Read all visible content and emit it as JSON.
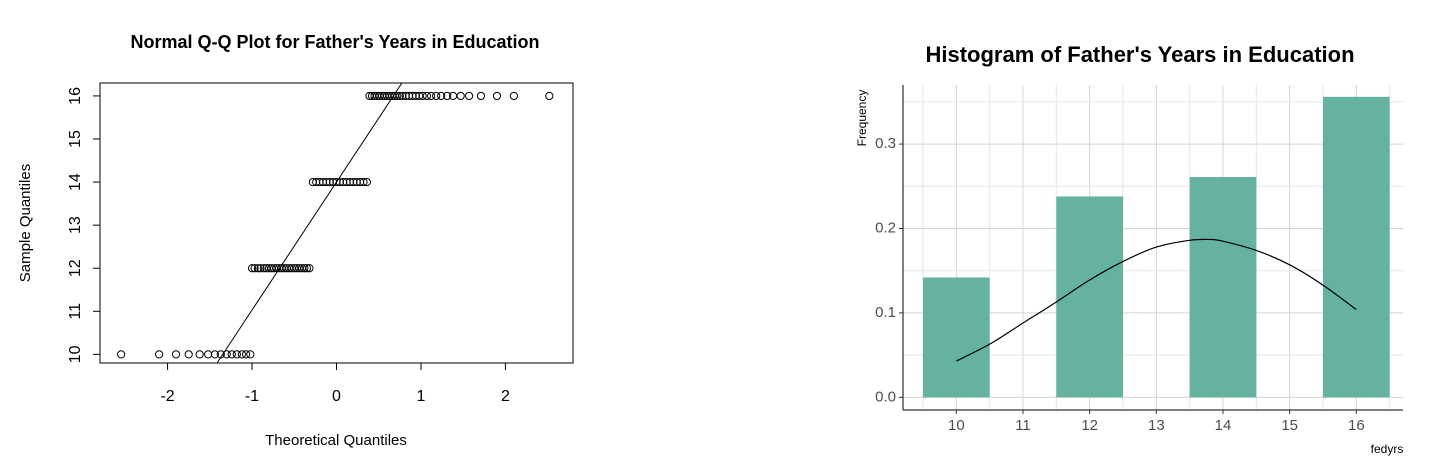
{
  "chart_data": [
    {
      "type": "scatter",
      "title": "Normal Q-Q Plot for Father's Years in Education",
      "xlabel": "Theoretical Quantiles",
      "ylabel": "Sample Quantiles",
      "xlim": [
        -2.8,
        2.8
      ],
      "ylim": [
        9.8,
        16.3
      ],
      "x_ticks": [
        "-2",
        "-1",
        "0",
        "1",
        "2"
      ],
      "y_ticks": [
        "10",
        "11",
        "12",
        "13",
        "14",
        "15",
        "16"
      ],
      "reference_line": {
        "intercept": 14.0,
        "slope": 2.97
      },
      "series": [
        {
          "y": 10,
          "x": [
            -2.55,
            -2.1,
            -1.9,
            -1.75,
            -1.62,
            -1.52,
            -1.44,
            -1.37,
            -1.3,
            -1.24,
            -1.18,
            -1.12,
            -1.07,
            -1.02
          ]
        },
        {
          "y": 12,
          "x": [
            -1.0,
            -0.97,
            -0.93,
            -0.9,
            -0.86,
            -0.83,
            -0.8,
            -0.77,
            -0.74,
            -0.71,
            -0.68,
            -0.65,
            -0.62,
            -0.59,
            -0.56,
            -0.53,
            -0.5,
            -0.47,
            -0.44,
            -0.41,
            -0.38,
            -0.35,
            -0.32
          ]
        },
        {
          "y": 14,
          "x": [
            -0.28,
            -0.24,
            -0.2,
            -0.16,
            -0.12,
            -0.08,
            -0.04,
            0.0,
            0.04,
            0.08,
            0.12,
            0.16,
            0.2,
            0.24,
            0.28,
            0.32,
            0.36
          ]
        },
        {
          "y": 16,
          "x": [
            0.39,
            0.42,
            0.45,
            0.48,
            0.51,
            0.54,
            0.57,
            0.6,
            0.63,
            0.66,
            0.69,
            0.72,
            0.75,
            0.78,
            0.82,
            0.86,
            0.9,
            0.94,
            0.98,
            1.02,
            1.07,
            1.12,
            1.18,
            1.24,
            1.31,
            1.38,
            1.47,
            1.57,
            1.71,
            1.9,
            2.1,
            2.52
          ]
        }
      ]
    },
    {
      "type": "bar",
      "title": "Histogram of Father's Years in Education",
      "xlabel": "fedyrs",
      "ylabel": "Frequency",
      "x_ticks": [
        "10",
        "11",
        "12",
        "13",
        "14",
        "15",
        "16"
      ],
      "y_ticks": [
        "0.0",
        "0.1",
        "0.2",
        "0.3"
      ],
      "xlim": [
        9.2,
        16.7
      ],
      "ylim": [
        -0.015,
        0.37
      ],
      "bar_color": "#66b2a0",
      "bar_width": 1.0,
      "categories": [
        "10",
        "12",
        "14",
        "16"
      ],
      "values": [
        0.142,
        0.238,
        0.261,
        0.356
      ],
      "grid": true,
      "density_curve": {
        "x": [
          10,
          10.5,
          11,
          11.5,
          12,
          12.5,
          13,
          13.5,
          13.8,
          14,
          14.5,
          15,
          15.5,
          16
        ],
        "y": [
          0.043,
          0.063,
          0.088,
          0.113,
          0.139,
          0.161,
          0.178,
          0.186,
          0.187,
          0.185,
          0.174,
          0.157,
          0.133,
          0.104
        ]
      }
    }
  ]
}
